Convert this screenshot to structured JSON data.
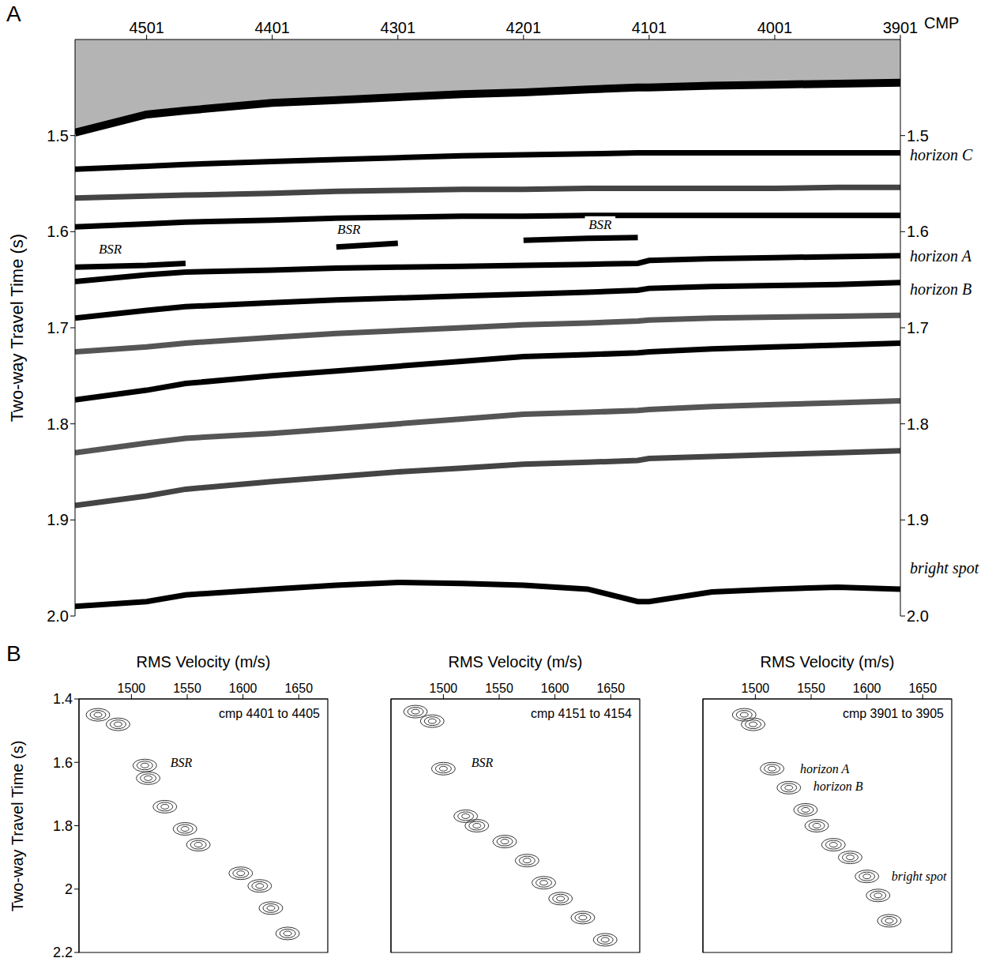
{
  "chart_data": [
    {
      "panel": "A",
      "type": "line",
      "x_title": "CMP",
      "y_title": "Two-way Travel Time (s)",
      "xlim": [
        4558,
        3901
      ],
      "xticks": [
        4501,
        4401,
        4301,
        4201,
        4101,
        4001,
        3901
      ],
      "ylim": [
        2.0,
        1.4
      ],
      "yticks": [
        1.5,
        1.6,
        1.7,
        1.8,
        1.9,
        {
          "value": 2,
          "label": "2.0"
        }
      ],
      "x": [
        4558,
        4501,
        4470,
        4401,
        4350,
        4301,
        4250,
        4201,
        4150,
        4110,
        4101,
        4051,
        4001,
        3951,
        3901
      ],
      "series": [
        {
          "color": "#000000",
          "values": [
            1.497,
            1.478,
            1.474,
            1.466,
            1.463,
            1.46,
            1.457,
            1.455,
            1.452,
            1.45,
            1.45,
            1.448,
            1.447,
            1.446,
            1.445
          ]
        },
        {
          "color": "#000000",
          "values": [
            1.535,
            1.532,
            1.53,
            1.527,
            1.525,
            1.523,
            1.521,
            1.52,
            1.519,
            1.518,
            1.518,
            1.518,
            1.518,
            1.518,
            1.518
          ]
        },
        {
          "color": "#444444",
          "values": [
            1.565,
            1.563,
            1.562,
            1.56,
            1.558,
            1.557,
            1.556,
            1.556,
            1.555,
            1.555,
            1.555,
            1.555,
            1.555,
            1.554,
            1.554
          ]
        },
        {
          "color": "#000000",
          "values": [
            1.595,
            1.592,
            1.59,
            1.588,
            1.586,
            1.585,
            1.584,
            1.584,
            1.583,
            1.583,
            1.583,
            1.583,
            1.583,
            1.583,
            1.583
          ]
        },
        {
          "color": "#000000",
          "values": [
            1.637,
            1.635,
            1.633,
            null,
            1.616,
            1.612,
            null,
            1.609,
            1.607,
            1.606,
            null,
            null,
            null,
            null,
            null
          ]
        },
        {
          "color": "#000000",
          "values": [
            1.652,
            1.645,
            1.642,
            1.64,
            1.638,
            1.637,
            1.636,
            1.635,
            1.634,
            1.633,
            1.63,
            1.628,
            1.627,
            1.626,
            1.625
          ]
        },
        {
          "color": "#000000",
          "values": [
            1.69,
            1.682,
            1.678,
            1.674,
            1.671,
            1.669,
            1.667,
            1.665,
            1.663,
            1.661,
            1.659,
            1.657,
            1.656,
            1.655,
            1.653
          ]
        },
        {
          "color": "#555555",
          "values": [
            1.725,
            1.72,
            1.716,
            1.71,
            1.706,
            1.703,
            1.7,
            1.697,
            1.695,
            1.693,
            1.692,
            1.69,
            1.689,
            1.688,
            1.687
          ]
        },
        {
          "color": "#000000",
          "values": [
            1.775,
            1.765,
            1.758,
            1.75,
            1.745,
            1.74,
            1.735,
            1.73,
            1.728,
            1.726,
            1.725,
            1.722,
            1.72,
            1.718,
            1.716
          ]
        },
        {
          "color": "#555555",
          "values": [
            1.83,
            1.82,
            1.815,
            1.81,
            1.805,
            1.8,
            1.795,
            1.79,
            1.788,
            1.786,
            1.785,
            1.782,
            1.78,
            1.778,
            1.776
          ]
        },
        {
          "color": "#444444",
          "values": [
            1.885,
            1.875,
            1.868,
            1.86,
            1.855,
            1.85,
            1.846,
            1.842,
            1.84,
            1.838,
            1.836,
            1.834,
            1.832,
            1.83,
            1.828
          ]
        },
        {
          "color": "#000000",
          "values": [
            1.99,
            1.985,
            1.978,
            1.972,
            1.968,
            1.965,
            1.966,
            1.968,
            1.972,
            1.985,
            1.985,
            1.975,
            1.972,
            1.97,
            1.972
          ]
        }
      ],
      "annotations": [
        {
          "text": "BSR",
          "x": 4530,
          "y": 1.618
        },
        {
          "text": "BSR",
          "x": 4340,
          "y": 1.598
        },
        {
          "text": "BSR",
          "x": 4140,
          "y": 1.593
        }
      ],
      "right_labels": [
        {
          "text": "horizon C",
          "y": 1.52
        },
        {
          "text": "horizon A",
          "y": 1.625
        },
        {
          "text": "horizon B",
          "y": 1.66
        },
        {
          "text": "bright spot",
          "y": 1.95
        }
      ]
    },
    {
      "panel": "B",
      "type": "scatter",
      "x_title": "RMS Velocity (m/s)",
      "y_title": "Two-way Travel Time (s)",
      "subtitle": "cmp 4401 to 4405",
      "xlim": [
        1453,
        1676
      ],
      "xticks": [
        1500,
        1550,
        1600,
        1650
      ],
      "ylim": [
        2.2,
        1.4
      ],
      "yticks": [
        1.4,
        1.6,
        1.8,
        2,
        2.2
      ],
      "x": [
        1470,
        1488,
        1512,
        1515,
        1530,
        1548,
        1560,
        1598,
        1615,
        1625,
        1640
      ],
      "values": [
        1.45,
        1.48,
        1.61,
        1.65,
        1.74,
        1.81,
        1.86,
        1.95,
        1.99,
        2.06,
        2.14
      ],
      "annotations": [
        {
          "text": "BSR",
          "x": 1535,
          "y": 1.6
        }
      ]
    },
    {
      "type": "scatter",
      "x_title": "RMS Velocity (m/s)",
      "subtitle": "cmp 4151 to 4154",
      "tick_labels": "x",
      "xlim": [
        1453,
        1676
      ],
      "xticks": [
        1500,
        1550,
        1600,
        1650
      ],
      "ylim": [
        2.2,
        1.4
      ],
      "yticks": [
        1.4,
        1.6,
        1.8,
        2,
        2.2
      ],
      "x": [
        1475,
        1490,
        1500,
        1520,
        1530,
        1555,
        1575,
        1590,
        1605,
        1625,
        1645
      ],
      "values": [
        1.44,
        1.47,
        1.62,
        1.77,
        1.8,
        1.85,
        1.91,
        1.98,
        2.03,
        2.09,
        2.16
      ],
      "annotations": [
        {
          "text": "BSR",
          "x": 1525,
          "y": 1.6
        }
      ]
    },
    {
      "type": "scatter",
      "x_title": "RMS Velocity (m/s)",
      "subtitle": "cmp 3901 to 3905",
      "tick_labels": "x",
      "xlim": [
        1453,
        1676
      ],
      "xticks": [
        1500,
        1550,
        1600,
        1650
      ],
      "ylim": [
        2.2,
        1.4
      ],
      "yticks": [
        1.4,
        1.6,
        1.8,
        2,
        2.2
      ],
      "x": [
        1490,
        1498,
        1515,
        1530,
        1545,
        1555,
        1570,
        1585,
        1600,
        1610,
        1620
      ],
      "values": [
        1.45,
        1.48,
        1.62,
        1.68,
        1.75,
        1.8,
        1.86,
        1.9,
        1.96,
        2.02,
        2.1
      ],
      "annotations": [
        {
          "text": "horizon A",
          "x": 1540,
          "y": 1.62
        },
        {
          "text": "horizon B",
          "x": 1552,
          "y": 1.675
        },
        {
          "text": "bright spot",
          "x": 1622,
          "y": 1.96
        }
      ]
    }
  ]
}
